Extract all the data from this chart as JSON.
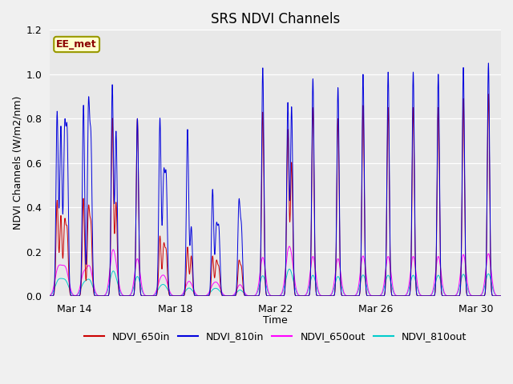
{
  "title": "SRS NDVI Channels",
  "xlabel": "Time",
  "ylabel": "NDVI Channels (W/m2/nm)",
  "annotation": "EE_met",
  "ylim": [
    0.0,
    1.2
  ],
  "legend_labels": [
    "NDVI_650in",
    "NDVI_810in",
    "NDVI_650out",
    "NDVI_810out"
  ],
  "line_colors": {
    "NDVI_650in": "#cc0000",
    "NDVI_810in": "#0000dd",
    "NDVI_650out": "#ff00ff",
    "NDVI_810out": "#00cccc"
  },
  "bg_color": "#e8e8e8",
  "fig_bg_color": "#f0f0f0",
  "xtick_labels": [
    "Mar 14",
    "Mar 18",
    "Mar 22",
    "Mar 26",
    "Mar 30"
  ],
  "num_days": 18,
  "title_fontsize": 12,
  "axis_label_fontsize": 9,
  "day_data": [
    {
      "peaks": [
        {
          "t": 0.3,
          "a810": 0.83,
          "a650": 0.43,
          "asub": 0.55
        },
        {
          "t": 0.45,
          "a810": 0.76,
          "a650": 0.36,
          "asub": 0.55
        },
        {
          "t": 0.6,
          "a810": 0.72,
          "a650": 0.32,
          "asub": 0.55
        },
        {
          "t": 0.7,
          "a810": 0.7,
          "a650": 0.28,
          "asub": 0.55
        }
      ]
    },
    {
      "peaks": [
        {
          "t": 0.35,
          "a810": 0.86,
          "a650": 0.44,
          "asub": 0.55
        },
        {
          "t": 0.55,
          "a810": 0.83,
          "a650": 0.38,
          "asub": 0.55
        },
        {
          "t": 0.65,
          "a810": 0.66,
          "a650": 0.3,
          "asub": 0.55
        }
      ]
    },
    {
      "peaks": [
        {
          "t": 0.5,
          "a810": 0.95,
          "a650": 0.8,
          "asub": 0.55
        },
        {
          "t": 0.65,
          "a810": 0.74,
          "a650": 0.42,
          "asub": 0.4
        }
      ]
    },
    {
      "peaks": [
        {
          "t": 0.5,
          "a810": 0.8,
          "a650": 0.8,
          "asub": 0.55
        }
      ]
    },
    {
      "peaks": [
        {
          "t": 0.4,
          "a810": 0.8,
          "a650": 0.27,
          "asub": 0.55
        },
        {
          "t": 0.55,
          "a810": 0.52,
          "a650": 0.22,
          "asub": 0.4
        },
        {
          "t": 0.65,
          "a810": 0.51,
          "a650": 0.19,
          "asub": 0.35
        }
      ]
    },
    {
      "peaks": [
        {
          "t": 0.5,
          "a810": 0.75,
          "a650": 0.22,
          "asub": 0.55
        },
        {
          "t": 0.65,
          "a810": 0.31,
          "a650": 0.18,
          "asub": 0.4
        }
      ]
    },
    {
      "peaks": [
        {
          "t": 0.5,
          "a810": 0.48,
          "a650": 0.18,
          "asub": 0.55
        },
        {
          "t": 0.65,
          "a810": 0.3,
          "a650": 0.15,
          "asub": 0.35
        },
        {
          "t": 0.75,
          "a810": 0.29,
          "a650": 0.12,
          "asub": 0.3
        }
      ]
    },
    {
      "peaks": [
        {
          "t": 0.55,
          "a810": 0.41,
          "a650": 0.15,
          "asub": 0.55
        },
        {
          "t": 0.65,
          "a810": 0.29,
          "a650": 0.12,
          "asub": 0.35
        }
      ]
    },
    {
      "peaks": [
        {
          "t": 0.5,
          "a810": 1.03,
          "a650": 0.83,
          "asub": 0.55
        }
      ]
    },
    {
      "peaks": [
        {
          "t": 0.5,
          "a810": 0.87,
          "a650": 0.75,
          "asub": 0.55
        },
        {
          "t": 0.65,
          "a810": 0.85,
          "a650": 0.6,
          "asub": 0.4
        }
      ]
    },
    {
      "peaks": [
        {
          "t": 0.5,
          "a810": 0.98,
          "a650": 0.85,
          "asub": 0.55
        }
      ]
    },
    {
      "peaks": [
        {
          "t": 0.5,
          "a810": 0.94,
          "a650": 0.8,
          "asub": 0.55
        }
      ]
    },
    {
      "peaks": [
        {
          "t": 0.5,
          "a810": 1.0,
          "a650": 0.86,
          "asub": 0.55
        }
      ]
    },
    {
      "peaks": [
        {
          "t": 0.5,
          "a810": 1.01,
          "a650": 0.85,
          "asub": 0.55
        }
      ]
    },
    {
      "peaks": [
        {
          "t": 0.5,
          "a810": 1.01,
          "a650": 0.85,
          "asub": 0.55
        }
      ]
    },
    {
      "peaks": [
        {
          "t": 0.5,
          "a810": 1.0,
          "a650": 0.85,
          "asub": 0.55
        }
      ]
    },
    {
      "peaks": [
        {
          "t": 0.5,
          "a810": 1.03,
          "a650": 0.89,
          "asub": 0.55
        }
      ]
    },
    {
      "peaks": [
        {
          "t": 0.5,
          "a810": 1.05,
          "a650": 0.91,
          "asub": 0.55
        }
      ]
    }
  ]
}
